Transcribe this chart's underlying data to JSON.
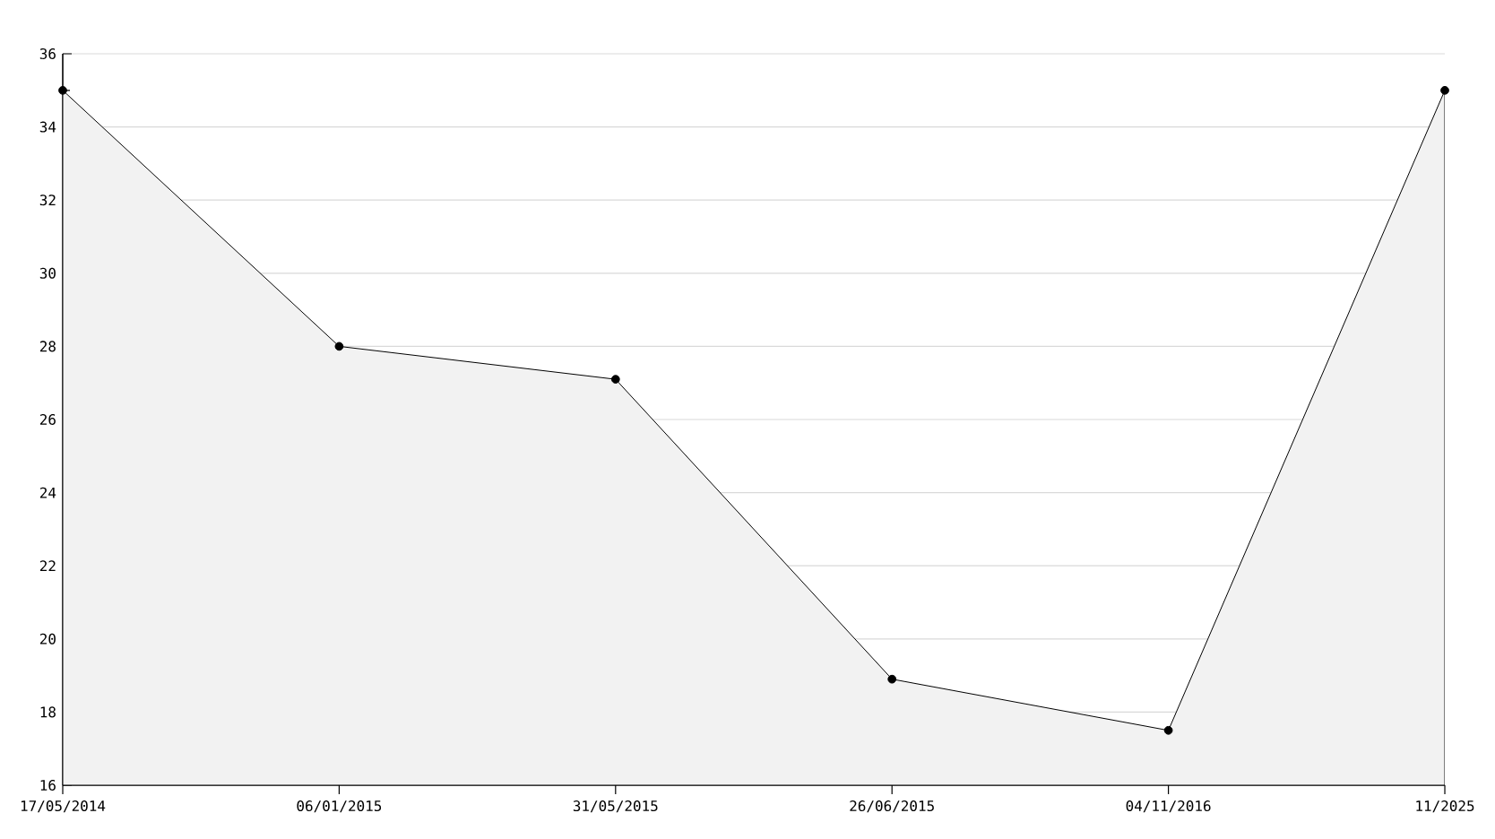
{
  "chart_data": {
    "type": "area",
    "categories": [
      "17/05/2014",
      "06/01/2015",
      "31/05/2015",
      "26/06/2015",
      "04/11/2016",
      "11/2025"
    ],
    "values": [
      35,
      28,
      27.1,
      18.9,
      17.5,
      35
    ],
    "color": "#f2f2f2",
    "ylim": [
      16,
      36
    ],
    "yticks": [
      16,
      18,
      20,
      22,
      24,
      26,
      28,
      30,
      32,
      34,
      36
    ],
    "grid": "y",
    "marker": "circle"
  }
}
